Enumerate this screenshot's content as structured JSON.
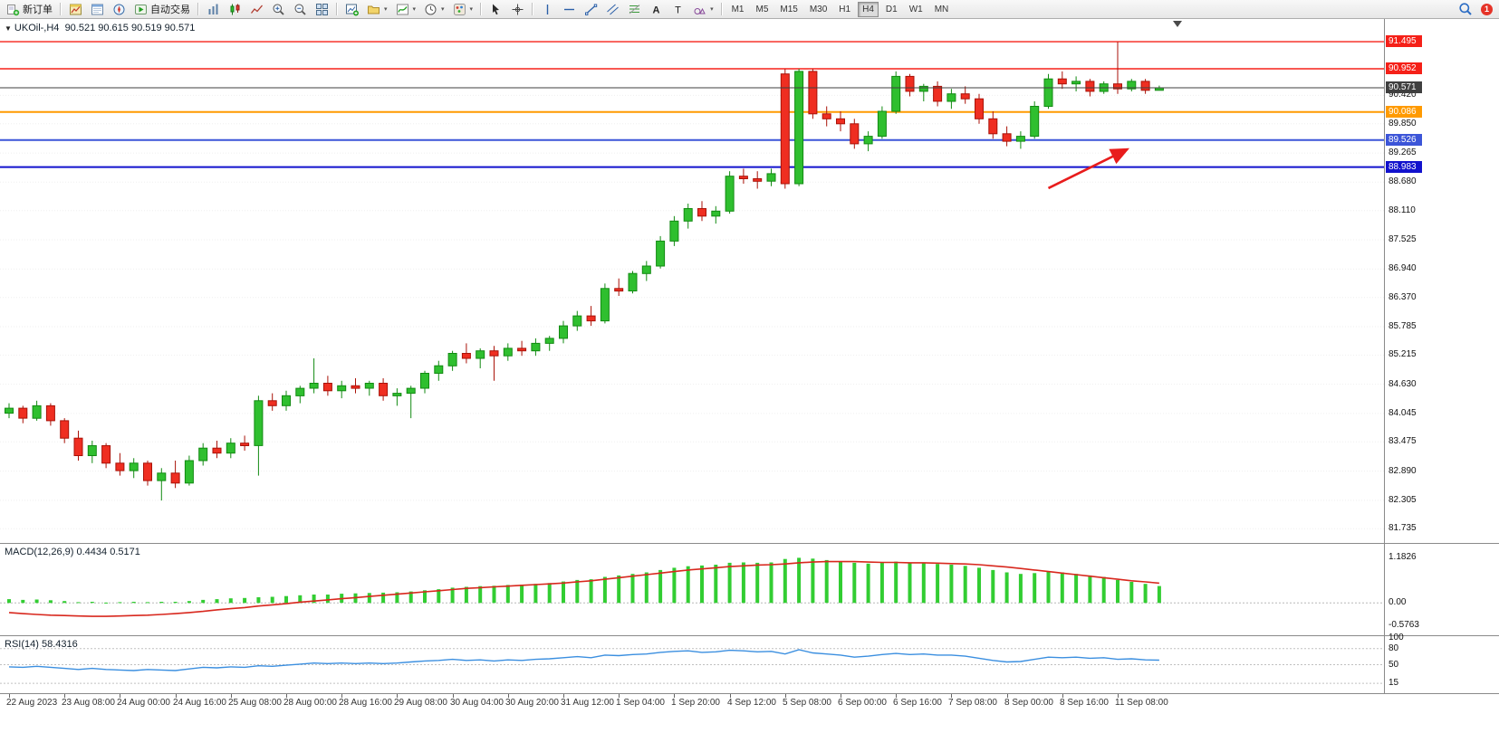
{
  "toolbar": {
    "new_order_label": "新订单",
    "autotrading_label": "自动交易",
    "badge": "1",
    "groups": [
      {
        "items": [
          {
            "name": "new-order-button",
            "icon": "new-order",
            "label": "新订单"
          }
        ]
      },
      {
        "items": [
          {
            "name": "market-watch-button",
            "icon": "market-watch"
          },
          {
            "name": "data-window-button",
            "icon": "data-window"
          },
          {
            "name": "navigator-button",
            "icon": "navigator"
          },
          {
            "name": "autotrading-button",
            "icon": "autotrading",
            "label": "自动交易"
          }
        ]
      },
      {
        "items": [
          {
            "name": "bar-chart-button",
            "icon": "bar-chart"
          },
          {
            "name": "candlestick-chart-button",
            "icon": "candlestick"
          },
          {
            "name": "line-chart-button",
            "icon": "line-chart"
          },
          {
            "name": "zoom-in-button",
            "icon": "zoom-in"
          },
          {
            "name": "zoom-out-button",
            "icon": "zoom-out"
          },
          {
            "name": "tile-windows-button",
            "icon": "tile-windows"
          }
        ]
      },
      {
        "items": [
          {
            "name": "new-chart-button",
            "icon": "new-chart"
          },
          {
            "name": "chart-profiles-button",
            "icon": "profiles",
            "caret": true
          },
          {
            "name": "indicators-button",
            "icon": "indicators",
            "caret": true
          },
          {
            "name": "periods-button",
            "icon": "periods",
            "caret": true
          },
          {
            "name": "templates-button",
            "icon": "templates",
            "caret": true
          }
        ]
      },
      {
        "items": [
          {
            "name": "cursor-button",
            "icon": "cursor"
          },
          {
            "name": "crosshair-button",
            "icon": "crosshair"
          }
        ]
      },
      {
        "items": [
          {
            "name": "vertical-line-button",
            "icon": "vline"
          },
          {
            "name": "horizontal-line-button",
            "icon": "hline"
          },
          {
            "name": "trendline-button",
            "icon": "trendline"
          },
          {
            "name": "channel-button",
            "icon": "channel"
          },
          {
            "name": "fibonacci-button",
            "icon": "fibo"
          },
          {
            "name": "text-button",
            "icon": "text"
          },
          {
            "name": "label-button",
            "icon": "label"
          },
          {
            "name": "shapes-button",
            "icon": "shapes",
            "caret": true
          }
        ]
      }
    ],
    "timeframes": {
      "buttons": [
        "M1",
        "M5",
        "M15",
        "M30",
        "H1",
        "H4",
        "D1",
        "W1",
        "MN"
      ],
      "active": "H4"
    }
  },
  "chart": {
    "symbol_label": "UKOil-,H4",
    "ohlc_label": "90.521 90.615 90.519 90.571"
  },
  "chart_data": {
    "type": "candlestick",
    "symbol": "UKOil-",
    "timeframe": "H4",
    "current_ohlc": {
      "open": "90.521",
      "high": "90.615",
      "low": "90.519",
      "close": "90.571"
    },
    "ylim": [
      81.45,
      91.95
    ],
    "y_axis_labels": [
      "90.420",
      "89.850",
      "89.265",
      "88.680",
      "88.110",
      "87.525",
      "86.940",
      "86.370",
      "85.785",
      "85.215",
      "84.630",
      "84.045",
      "83.475",
      "82.890",
      "82.305",
      "81.735"
    ],
    "x_labels": [
      "22 Aug 2023",
      "23 Aug 08:00",
      "24 Aug 00:00",
      "24 Aug 16:00",
      "25 Aug 08:00",
      "28 Aug 00:00",
      "28 Aug 16:00",
      "29 Aug 08:00",
      "30 Aug 04:00",
      "30 Aug 20:00",
      "31 Aug 12:00",
      "1 Sep 04:00",
      "1 Sep 20:00",
      "4 Sep 12:00",
      "5 Sep 08:00",
      "6 Sep 00:00",
      "6 Sep 16:00",
      "7 Sep 08:00",
      "8 Sep 00:00",
      "8 Sep 16:00",
      "11 Sep 08:00"
    ],
    "bars_per_label": 4,
    "up_color": "#2fbf2f",
    "down_color": "#ef2e21",
    "candles": [
      [
        84.05,
        84.25,
        83.95,
        84.15
      ],
      [
        84.15,
        84.2,
        83.85,
        83.95
      ],
      [
        83.95,
        84.3,
        83.9,
        84.2
      ],
      [
        84.2,
        84.25,
        83.8,
        83.9
      ],
      [
        83.9,
        83.95,
        83.45,
        83.55
      ],
      [
        83.55,
        83.7,
        83.1,
        83.2
      ],
      [
        83.2,
        83.5,
        83.05,
        83.4
      ],
      [
        83.4,
        83.45,
        82.95,
        83.05
      ],
      [
        83.05,
        83.25,
        82.8,
        82.9
      ],
      [
        82.9,
        83.15,
        82.75,
        83.05
      ],
      [
        83.05,
        83.1,
        82.6,
        82.7
      ],
      [
        82.7,
        82.95,
        82.3,
        82.85
      ],
      [
        82.85,
        83.1,
        82.55,
        82.65
      ],
      [
        82.65,
        83.2,
        82.6,
        83.1
      ],
      [
        83.1,
        83.45,
        83.0,
        83.35
      ],
      [
        83.35,
        83.5,
        83.15,
        83.25
      ],
      [
        83.25,
        83.55,
        83.15,
        83.45
      ],
      [
        83.45,
        83.6,
        83.3,
        83.4
      ],
      [
        83.4,
        84.4,
        82.8,
        84.3
      ],
      [
        84.3,
        84.45,
        84.1,
        84.2
      ],
      [
        84.2,
        84.5,
        84.1,
        84.4
      ],
      [
        84.4,
        84.6,
        84.25,
        84.55
      ],
      [
        84.55,
        85.15,
        84.45,
        84.65
      ],
      [
        84.65,
        84.8,
        84.4,
        84.5
      ],
      [
        84.5,
        84.7,
        84.35,
        84.6
      ],
      [
        84.6,
        84.75,
        84.45,
        84.55
      ],
      [
        84.55,
        84.7,
        84.4,
        84.65
      ],
      [
        84.65,
        84.75,
        84.3,
        84.4
      ],
      [
        84.4,
        84.55,
        84.2,
        84.45
      ],
      [
        84.45,
        84.6,
        83.95,
        84.55
      ],
      [
        84.55,
        84.9,
        84.45,
        84.85
      ],
      [
        84.85,
        85.1,
        84.7,
        85.0
      ],
      [
        85.0,
        85.3,
        84.9,
        85.25
      ],
      [
        85.25,
        85.45,
        85.05,
        85.15
      ],
      [
        85.15,
        85.35,
        84.95,
        85.3
      ],
      [
        85.3,
        85.4,
        84.7,
        85.2
      ],
      [
        85.2,
        85.45,
        85.1,
        85.35
      ],
      [
        85.35,
        85.5,
        85.2,
        85.3
      ],
      [
        85.3,
        85.55,
        85.2,
        85.45
      ],
      [
        85.45,
        85.6,
        85.3,
        85.55
      ],
      [
        85.55,
        85.9,
        85.45,
        85.8
      ],
      [
        85.8,
        86.1,
        85.7,
        86.0
      ],
      [
        86.0,
        86.2,
        85.8,
        85.9
      ],
      [
        85.9,
        86.65,
        85.85,
        86.55
      ],
      [
        86.55,
        86.75,
        86.4,
        86.5
      ],
      [
        86.5,
        86.9,
        86.45,
        86.85
      ],
      [
        86.85,
        87.1,
        86.7,
        87.0
      ],
      [
        87.0,
        87.6,
        86.95,
        87.5
      ],
      [
        87.5,
        88.0,
        87.4,
        87.9
      ],
      [
        87.9,
        88.25,
        87.75,
        88.15
      ],
      [
        88.15,
        88.3,
        87.9,
        88.0
      ],
      [
        88.0,
        88.2,
        87.85,
        88.1
      ],
      [
        88.1,
        88.9,
        88.05,
        88.8
      ],
      [
        88.8,
        88.95,
        88.65,
        88.75
      ],
      [
        88.75,
        88.9,
        88.55,
        88.7
      ],
      [
        88.7,
        88.95,
        88.6,
        88.85
      ],
      [
        90.85,
        90.95,
        88.55,
        88.65
      ],
      [
        88.65,
        90.95,
        88.6,
        90.9
      ],
      [
        90.9,
        90.95,
        89.95,
        90.05
      ],
      [
        90.05,
        90.2,
        89.8,
        89.95
      ],
      [
        89.95,
        90.1,
        89.7,
        89.85
      ],
      [
        89.85,
        89.95,
        89.35,
        89.45
      ],
      [
        89.45,
        89.7,
        89.3,
        89.6
      ],
      [
        89.6,
        90.2,
        89.55,
        90.1
      ],
      [
        90.1,
        90.9,
        90.05,
        90.8
      ],
      [
        90.8,
        90.85,
        90.4,
        90.5
      ],
      [
        90.5,
        90.65,
        90.3,
        90.6
      ],
      [
        90.6,
        90.7,
        90.2,
        90.3
      ],
      [
        90.3,
        90.55,
        90.15,
        90.45
      ],
      [
        90.45,
        90.6,
        90.25,
        90.35
      ],
      [
        90.35,
        90.45,
        89.85,
        89.95
      ],
      [
        89.95,
        90.1,
        89.55,
        89.65
      ],
      [
        89.65,
        89.8,
        89.4,
        89.5
      ],
      [
        89.5,
        89.7,
        89.35,
        89.6
      ],
      [
        89.6,
        90.3,
        89.55,
        90.2
      ],
      [
        90.2,
        90.85,
        90.15,
        90.75
      ],
      [
        90.75,
        90.9,
        90.55,
        90.65
      ],
      [
        90.65,
        90.8,
        90.5,
        90.7
      ],
      [
        90.7,
        90.75,
        90.4,
        90.5
      ],
      [
        90.5,
        90.7,
        90.45,
        90.65
      ],
      [
        90.65,
        91.49,
        90.45,
        90.55
      ],
      [
        90.55,
        90.75,
        90.5,
        90.7
      ],
      [
        90.7,
        90.75,
        90.45,
        90.52
      ],
      [
        90.521,
        90.615,
        90.519,
        90.571
      ]
    ],
    "levels": [
      {
        "price": 91.495,
        "label": "91.495",
        "color": "#f52018",
        "line_width": 1.4,
        "type": "resistance"
      },
      {
        "price": 90.952,
        "label": "90.952",
        "color": "#f52018",
        "line_width": 1.4,
        "type": "resistance"
      },
      {
        "price": 90.571,
        "label": "90.571",
        "color": "#3f3f3f",
        "line_width": 1,
        "type": "current"
      },
      {
        "price": 90.086,
        "label": "90.086",
        "color": "#ff9a00",
        "line_width": 2,
        "type": "level"
      },
      {
        "price": 89.526,
        "label": "89.526",
        "color": "#3c55d8",
        "line_width": 2,
        "type": "support"
      },
      {
        "price": 88.983,
        "label": "88.983",
        "color": "#1212cd",
        "line_width": 2,
        "type": "support"
      }
    ],
    "annotations": [
      {
        "name": "red-arrow",
        "from_bar": 75,
        "from_price": 88.56,
        "to_bar": 80.7,
        "to_price": 89.34,
        "color": "#e81c1c"
      }
    ],
    "indicators": {
      "macd": {
        "title": "MACD(12,26,9)",
        "main_value": "0.4434",
        "signal_value": "0.5171",
        "ylim": [
          -0.75,
          1.45
        ],
        "axis_labels": [
          {
            "value": 1.1826,
            "label": "1.1826"
          },
          {
            "value": 0,
            "label": "0.00"
          },
          {
            "value": -0.5763,
            "label": "-0.5763"
          }
        ],
        "histogram_color": "#32cd32",
        "signal_color": "#d8281e",
        "histogram": [
          0.1,
          0.08,
          0.09,
          0.07,
          0.05,
          0.02,
          0.03,
          0.01,
          0.02,
          0.03,
          0.02,
          0.03,
          0.03,
          0.05,
          0.08,
          0.1,
          0.12,
          0.13,
          0.15,
          0.16,
          0.18,
          0.2,
          0.22,
          0.22,
          0.24,
          0.25,
          0.26,
          0.27,
          0.28,
          0.3,
          0.33,
          0.36,
          0.4,
          0.42,
          0.44,
          0.45,
          0.47,
          0.48,
          0.5,
          0.52,
          0.56,
          0.6,
          0.62,
          0.68,
          0.72,
          0.76,
          0.8,
          0.86,
          0.92,
          0.96,
          0.98,
          1.0,
          1.05,
          1.06,
          1.05,
          1.06,
          1.15,
          1.18,
          1.16,
          1.12,
          1.08,
          1.05,
          1.03,
          1.05,
          1.08,
          1.06,
          1.04,
          1.02,
          1.0,
          0.97,
          0.92,
          0.86,
          0.8,
          0.76,
          0.78,
          0.82,
          0.8,
          0.76,
          0.72,
          0.68,
          0.6,
          0.55,
          0.5,
          0.4434
        ],
        "signal": [
          -0.25,
          -0.28,
          -0.3,
          -0.32,
          -0.33,
          -0.34,
          -0.35,
          -0.35,
          -0.34,
          -0.33,
          -0.32,
          -0.3,
          -0.28,
          -0.25,
          -0.22,
          -0.18,
          -0.15,
          -0.12,
          -0.08,
          -0.05,
          -0.02,
          0.02,
          0.05,
          0.08,
          0.11,
          0.14,
          0.17,
          0.2,
          0.23,
          0.26,
          0.29,
          0.32,
          0.35,
          0.38,
          0.4,
          0.42,
          0.44,
          0.46,
          0.48,
          0.5,
          0.52,
          0.55,
          0.58,
          0.62,
          0.66,
          0.7,
          0.74,
          0.78,
          0.82,
          0.86,
          0.89,
          0.92,
          0.95,
          0.97,
          0.99,
          1.0,
          1.02,
          1.05,
          1.07,
          1.08,
          1.08,
          1.08,
          1.07,
          1.06,
          1.06,
          1.05,
          1.05,
          1.04,
          1.03,
          1.02,
          1.0,
          0.97,
          0.94,
          0.9,
          0.86,
          0.82,
          0.78,
          0.74,
          0.7,
          0.66,
          0.62,
          0.58,
          0.55,
          0.5171
        ]
      },
      "rsi": {
        "title": "RSI(14)",
        "value": "58.4316",
        "ylim": [
          0,
          100
        ],
        "levels": [
          80,
          50,
          15
        ],
        "axis_labels": [
          {
            "value": 100,
            "label": "100"
          },
          {
            "value": 80,
            "label": "80"
          },
          {
            "value": 50,
            "label": "50"
          },
          {
            "value": 15,
            "label": "15"
          }
        ],
        "line_color": "#3b8fe0",
        "values": [
          46,
          45,
          47,
          45,
          43,
          41,
          43,
          41,
          40,
          39,
          41,
          40,
          39,
          42,
          45,
          44,
          46,
          45,
          48,
          47,
          49,
          51,
          53,
          52,
          53,
          52,
          53,
          52,
          53,
          55,
          57,
          58,
          60,
          58,
          59,
          57,
          59,
          58,
          60,
          61,
          63,
          65,
          63,
          68,
          67,
          69,
          70,
          73,
          75,
          76,
          73,
          74,
          77,
          76,
          74,
          75,
          70,
          78,
          72,
          70,
          68,
          64,
          66,
          69,
          71,
          69,
          70,
          68,
          68,
          66,
          62,
          58,
          55,
          56,
          60,
          64,
          63,
          64,
          62,
          63,
          60,
          61,
          59,
          58.43
        ]
      }
    }
  }
}
